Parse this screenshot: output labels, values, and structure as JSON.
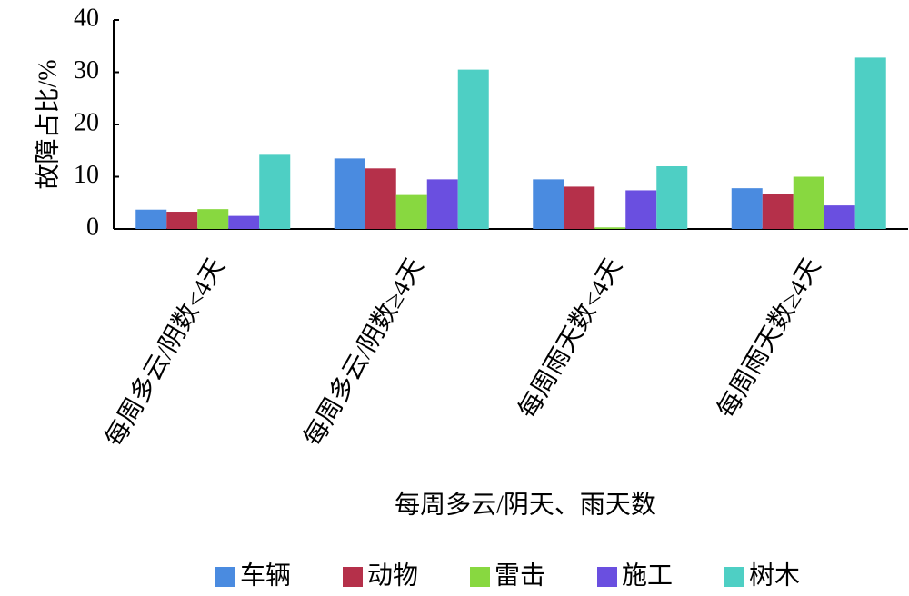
{
  "chart_data": {
    "type": "bar",
    "y_label": "故障占比/%",
    "x_label": "每周多云/阴天、雨天数",
    "categories": [
      "每周多云/阴数<4天",
      "每周多云/阴数≥4天",
      "每周雨天数<4天",
      "每周雨天数≥4天"
    ],
    "series": [
      {
        "name": "车辆",
        "color": "#4a8be0",
        "values": [
          3.7,
          13.5,
          9.5,
          7.8
        ]
      },
      {
        "name": "动物",
        "color": "#b5304a",
        "values": [
          3.3,
          11.6,
          8.1,
          6.7
        ]
      },
      {
        "name": "雷击",
        "color": "#88d840",
        "values": [
          3.8,
          6.5,
          0.3,
          10
        ]
      },
      {
        "name": "施工",
        "color": "#6a4fe0",
        "values": [
          2.5,
          9.5,
          7.4,
          4.5
        ]
      },
      {
        "name": "树木",
        "color": "#4ecfc4",
        "values": [
          14.2,
          30.5,
          12,
          32.8
        ]
      }
    ],
    "ylim": [
      0,
      40
    ],
    "yticks": [
      0,
      10,
      20,
      30,
      40
    ]
  }
}
